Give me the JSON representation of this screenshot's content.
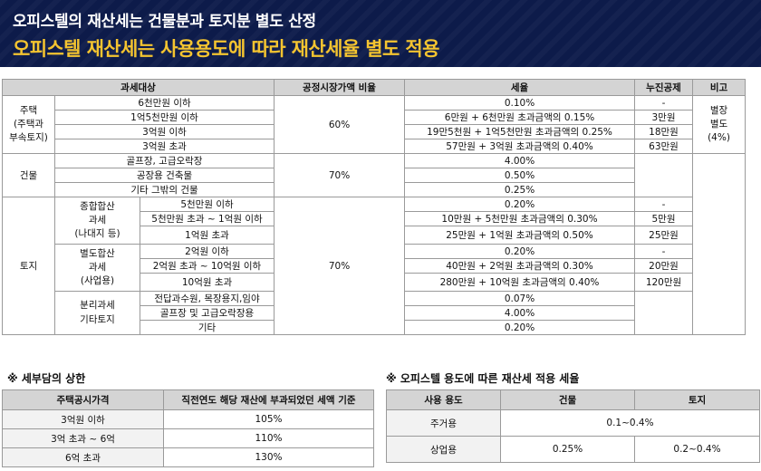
{
  "banner": {
    "subtitle": "오피스텔의 재산세는 건물분과 토지분 별도 산정",
    "title": "오피스텔 재산세는 사용용도에 따라 재산세율 별도 적용"
  },
  "main_table": {
    "headers": [
      "과세대상",
      "공정시장가액 비율",
      "세율",
      "누진공제",
      "비고"
    ],
    "housing": {
      "category": "주택\n(주택과\n부속토지)",
      "ratio": "60%",
      "note": "별장\n별도\n(4%)",
      "rows": [
        {
          "bracket": "6천만원 이하",
          "rate": "0.10%",
          "deduction": "-"
        },
        {
          "bracket": "1억5천만원 이하",
          "rate": "6만원 + 6천만원 초과금액의 0.15%",
          "deduction": "3만원"
        },
        {
          "bracket": "3억원 이하",
          "rate": "19만5천원 + 1억5천만원 초과금액의 0.25%",
          "deduction": "18만원"
        },
        {
          "bracket": "3억원 초과",
          "rate": "57만원 + 3억원 초과금액의 0.40%",
          "deduction": "63만원"
        }
      ]
    },
    "building": {
      "category": "건물",
      "ratio": "70%",
      "rows": [
        {
          "bracket": "골프장, 고급오락장",
          "rate": "4.00%"
        },
        {
          "bracket": "공장용 건축물",
          "rate": "0.50%"
        },
        {
          "bracket": "기타 그밖의 건물",
          "rate": "0.25%"
        }
      ]
    },
    "land": {
      "category": "토지",
      "ratio": "70%",
      "groups": [
        {
          "name": "종합합산\n과세\n(나대지 등)",
          "rows": [
            {
              "bracket": "5천만원 이하",
              "rate": "0.20%",
              "deduction": "-"
            },
            {
              "bracket": "5천만원 초과 ~ 1억원 이하",
              "rate": "10만원 + 5천만원 초과금액의 0.30%",
              "deduction": "5만원"
            },
            {
              "bracket": "1억원 초과",
              "rate": "25만원 + 1억원 초과금액의 0.50%",
              "deduction": "25만원"
            }
          ]
        },
        {
          "name": "별도합산\n과세\n(사업용)",
          "rows": [
            {
              "bracket": "2억원 이하",
              "rate": "0.20%",
              "deduction": "-"
            },
            {
              "bracket": "2억원 초과 ~ 10억원 이하",
              "rate": "40만원 + 2억원 초과금액의 0.30%",
              "deduction": "20만원"
            },
            {
              "bracket": "10억원 초과",
              "rate": "280만원 + 10억원 초과금액의 0.40%",
              "deduction": "120만원"
            }
          ]
        },
        {
          "name": "분리과세\n기타토지",
          "rows": [
            {
              "bracket": "전답과수원, 목장용지,임야",
              "rate": "0.07%"
            },
            {
              "bracket": "골프장 및 고급오락장용",
              "rate": "4.00%"
            },
            {
              "bracket": "기타",
              "rate": "0.20%"
            }
          ]
        }
      ]
    }
  },
  "cap_section": {
    "caption": "※ 세부담의 상한",
    "headers": [
      "주택공시가격",
      "직전연도 해당 재산에 부과되었던 세액 기준"
    ],
    "rows": [
      [
        "3억원 이하",
        "105%"
      ],
      [
        "3억 초과 ~ 6억",
        "110%"
      ],
      [
        "6억 초과",
        "130%"
      ]
    ]
  },
  "use_section": {
    "caption": "※ 오피스텔 용도에 따른 재산세 적용 세율",
    "headers": [
      "사용 용도",
      "건물",
      "토지"
    ],
    "residential": {
      "label": "주거용",
      "rate": "0.1~0.4%"
    },
    "commercial": {
      "label": "상업용",
      "building": "0.25%",
      "land": "0.2~0.4%"
    }
  }
}
